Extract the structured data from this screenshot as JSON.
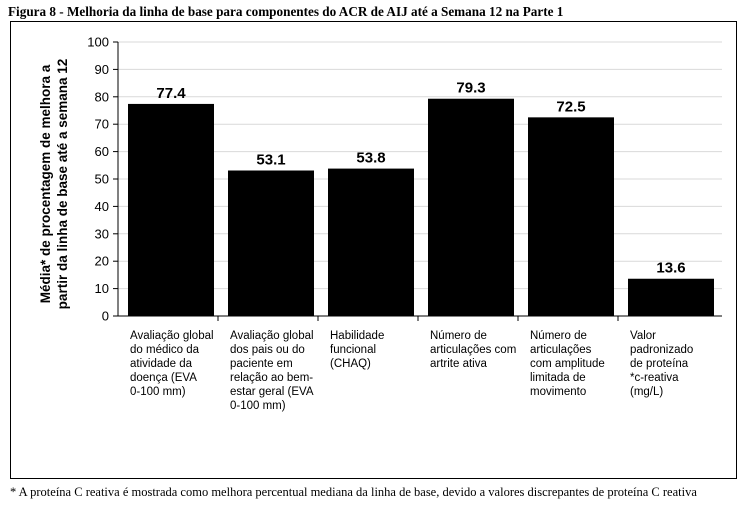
{
  "figure": {
    "title": "Figura 8 - Melhoria da linha de base para componentes do ACR de AIJ até a Semana 12 na Parte 1",
    "footnote": "* A proteína C reativa é mostrada como melhora percentual mediana da linha de base, devido a valores discrepantes de proteína C reativa"
  },
  "chart_data": {
    "type": "bar",
    "title": "",
    "xlabel": "",
    "ylabel": [
      "Média* de procentagem de melhora a",
      "partir da linha de base até a semana 12"
    ],
    "ylim": [
      0,
      100
    ],
    "yticks": [
      0,
      10,
      20,
      30,
      40,
      50,
      60,
      70,
      80,
      90,
      100
    ],
    "grid": true,
    "bar_color": "#000000",
    "categories": [
      [
        "Avaliação global",
        "do médico da",
        "atividade da",
        "doença (EVA",
        "0-100 mm)"
      ],
      [
        "Avaliação global",
        "dos pais ou do",
        "paciente em",
        "relação ao bem-",
        "estar geral (EVA",
        "0-100 mm)"
      ],
      [
        "Habilidade",
        "funcional",
        "(CHAQ)"
      ],
      [
        "Número de",
        "articulações com",
        "artrite ativa"
      ],
      [
        "Número de",
        "articulações",
        "com amplitude",
        "limitada de",
        "movimento"
      ],
      [
        "Valor",
        "padronizado",
        "de proteína",
        "*c-reativa",
        "(mg/L)"
      ]
    ],
    "values": [
      77.4,
      53.1,
      53.8,
      79.3,
      72.5,
      13.6
    ],
    "data_labels": [
      "77.4",
      "53.1",
      "53.8",
      "79.3",
      "72.5",
      "13.6"
    ]
  }
}
